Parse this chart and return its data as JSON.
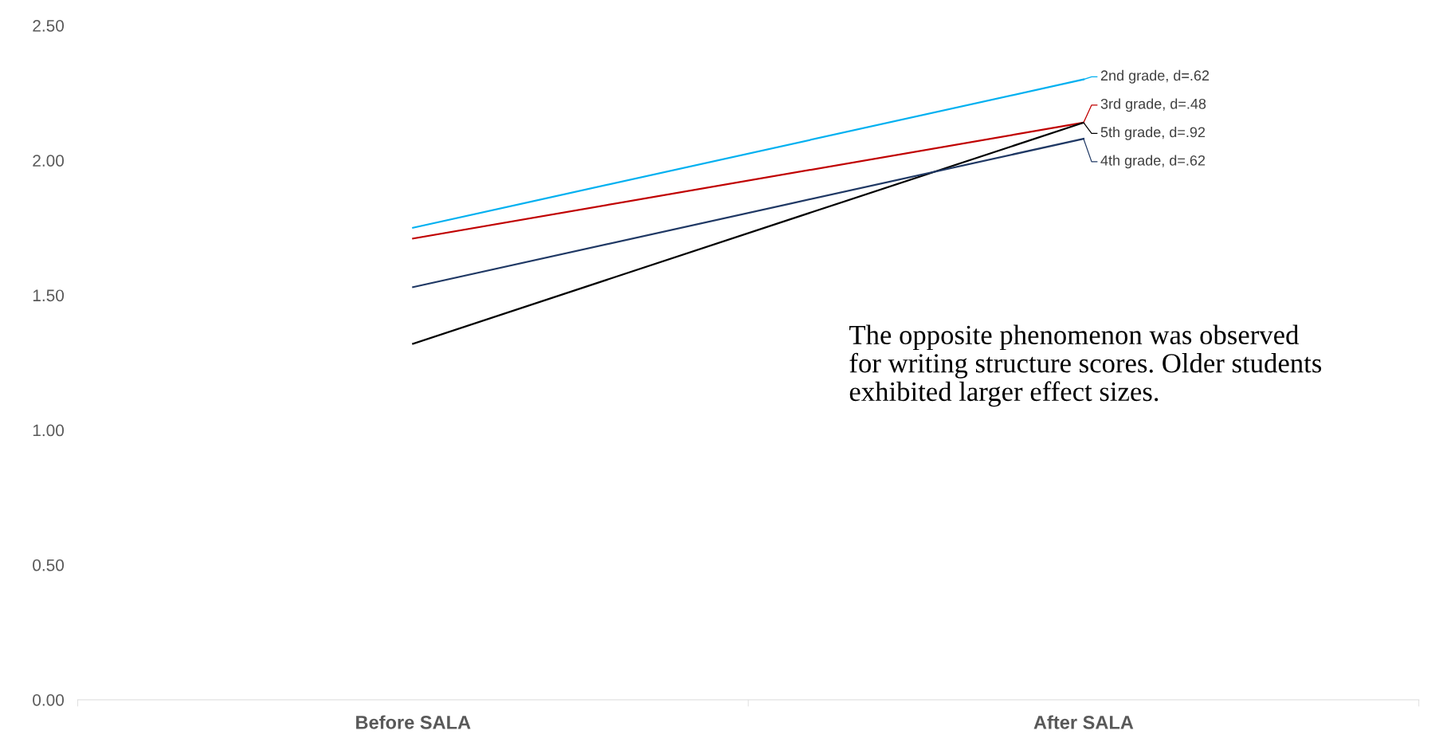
{
  "chart_data": {
    "type": "line",
    "categories": [
      "Before SALA",
      "After SALA"
    ],
    "series": [
      {
        "name": "2nd grade, d=.62",
        "color": "#00b0f0",
        "values": [
          1.75,
          2.3
        ]
      },
      {
        "name": "3rd grade, d=.48",
        "color": "#c00000",
        "values": [
          1.71,
          2.14
        ]
      },
      {
        "name": "5th grade, d=.92",
        "color": "#000000",
        "values": [
          1.32,
          2.14
        ]
      },
      {
        "name": "4th grade, d=.62",
        "color": "#1f3864",
        "values": [
          1.53,
          2.08
        ]
      }
    ],
    "ylim": [
      0,
      2.5
    ],
    "yticks": [
      {
        "value": 0,
        "label": "0.00"
      },
      {
        "value": 0.5,
        "label": "0.50"
      },
      {
        "value": 1,
        "label": "1.00"
      },
      {
        "value": 1.5,
        "label": "1.50"
      },
      {
        "value": 2,
        "label": "2.00"
      },
      {
        "value": 2.5,
        "label": "2.50"
      }
    ],
    "annotations": [
      "The opposite phenomenon was observed\nfor writing structure scores. Older students\nexhibited larger effect sizes."
    ],
    "grid": false,
    "legend": "right",
    "line_style": "solid"
  }
}
